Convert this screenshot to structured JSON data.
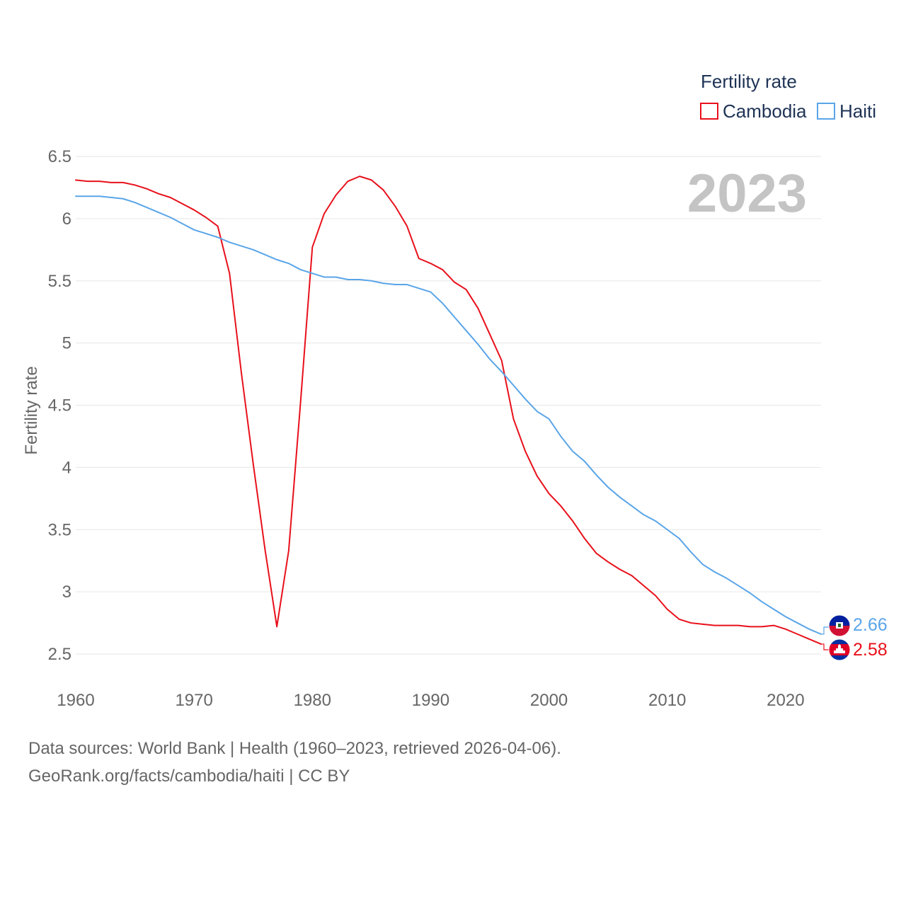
{
  "chart_data": {
    "type": "line",
    "ylabel": "Fertility rate",
    "xlabel": "",
    "xlim": [
      1960,
      2023
    ],
    "ylim": [
      2.5,
      6.5
    ],
    "year_label": "2023",
    "x_ticks": [
      "1960",
      "1970",
      "1980",
      "1990",
      "2000",
      "2010",
      "2020"
    ],
    "y_ticks": [
      "6.5",
      "6",
      "5.5",
      "5",
      "4.5",
      "4",
      "3.5",
      "3",
      "2.5"
    ],
    "legend": {
      "title": "Fertility rate",
      "placement": "top-right"
    },
    "series": [
      {
        "name": "Cambodia",
        "color": "#e8101b",
        "end_label": "2.58",
        "flag": "cambodia-flag",
        "x": [
          1960,
          1961,
          1962,
          1963,
          1964,
          1965,
          1966,
          1967,
          1968,
          1969,
          1970,
          1971,
          1972,
          1973,
          1974,
          1975,
          1976,
          1977,
          1978,
          1979,
          1980,
          1981,
          1982,
          1983,
          1984,
          1985,
          1986,
          1987,
          1988,
          1989,
          1990,
          1991,
          1992,
          1993,
          1994,
          1995,
          1996,
          1997,
          1998,
          1999,
          2000,
          2001,
          2002,
          2003,
          2004,
          2005,
          2006,
          2007,
          2008,
          2009,
          2010,
          2011,
          2012,
          2013,
          2014,
          2015,
          2016,
          2017,
          2018,
          2019,
          2020,
          2021,
          2022,
          2023
        ],
        "values": [
          6.31,
          6.3,
          6.3,
          6.29,
          6.29,
          6.27,
          6.24,
          6.2,
          6.17,
          6.12,
          6.07,
          6.01,
          5.94,
          5.56,
          4.76,
          4.03,
          3.34,
          2.72,
          3.33,
          4.52,
          5.77,
          6.04,
          6.19,
          6.3,
          6.34,
          6.31,
          6.23,
          6.1,
          5.94,
          5.68,
          5.64,
          5.59,
          5.49,
          5.43,
          5.28,
          5.07,
          4.86,
          4.39,
          4.13,
          3.93,
          3.79,
          3.69,
          3.57,
          3.43,
          3.31,
          3.24,
          3.18,
          3.13,
          3.05,
          2.97,
          2.86,
          2.78,
          2.75,
          2.74,
          2.73,
          2.73,
          2.73,
          2.72,
          2.72,
          2.73,
          2.7,
          2.66,
          2.62,
          2.58
        ]
      },
      {
        "name": "Haiti",
        "color": "#5aa5e8",
        "end_label": "2.66",
        "flag": "haiti-flag",
        "x": [
          1960,
          1961,
          1962,
          1963,
          1964,
          1965,
          1966,
          1967,
          1968,
          1969,
          1970,
          1971,
          1972,
          1973,
          1974,
          1975,
          1976,
          1977,
          1978,
          1979,
          1980,
          1981,
          1982,
          1983,
          1984,
          1985,
          1986,
          1987,
          1988,
          1989,
          1990,
          1991,
          1992,
          1993,
          1994,
          1995,
          1996,
          1997,
          1998,
          1999,
          2000,
          2001,
          2002,
          2003,
          2004,
          2005,
          2006,
          2007,
          2008,
          2009,
          2010,
          2011,
          2012,
          2013,
          2014,
          2015,
          2016,
          2017,
          2018,
          2019,
          2020,
          2021,
          2022,
          2023
        ],
        "values": [
          6.18,
          6.18,
          6.18,
          6.17,
          6.16,
          6.13,
          6.09,
          6.05,
          6.01,
          5.96,
          5.91,
          5.88,
          5.85,
          5.81,
          5.78,
          5.75,
          5.71,
          5.67,
          5.64,
          5.59,
          5.56,
          5.53,
          5.53,
          5.51,
          5.51,
          5.5,
          5.48,
          5.47,
          5.47,
          5.44,
          5.41,
          5.32,
          5.21,
          5.1,
          4.99,
          4.87,
          4.77,
          4.66,
          4.55,
          4.45,
          4.39,
          4.25,
          4.13,
          4.05,
          3.94,
          3.84,
          3.76,
          3.69,
          3.62,
          3.57,
          3.5,
          3.43,
          3.32,
          3.22,
          3.16,
          3.11,
          3.05,
          2.99,
          2.92,
          2.86,
          2.8,
          2.75,
          2.7,
          2.66
        ]
      }
    ]
  },
  "footer": {
    "sources": "Data sources: World Bank | Health (1960–2023, retrieved 2026-04-06).",
    "credit": "GeoRank.org/facts/cambodia/haiti | CC BY"
  }
}
